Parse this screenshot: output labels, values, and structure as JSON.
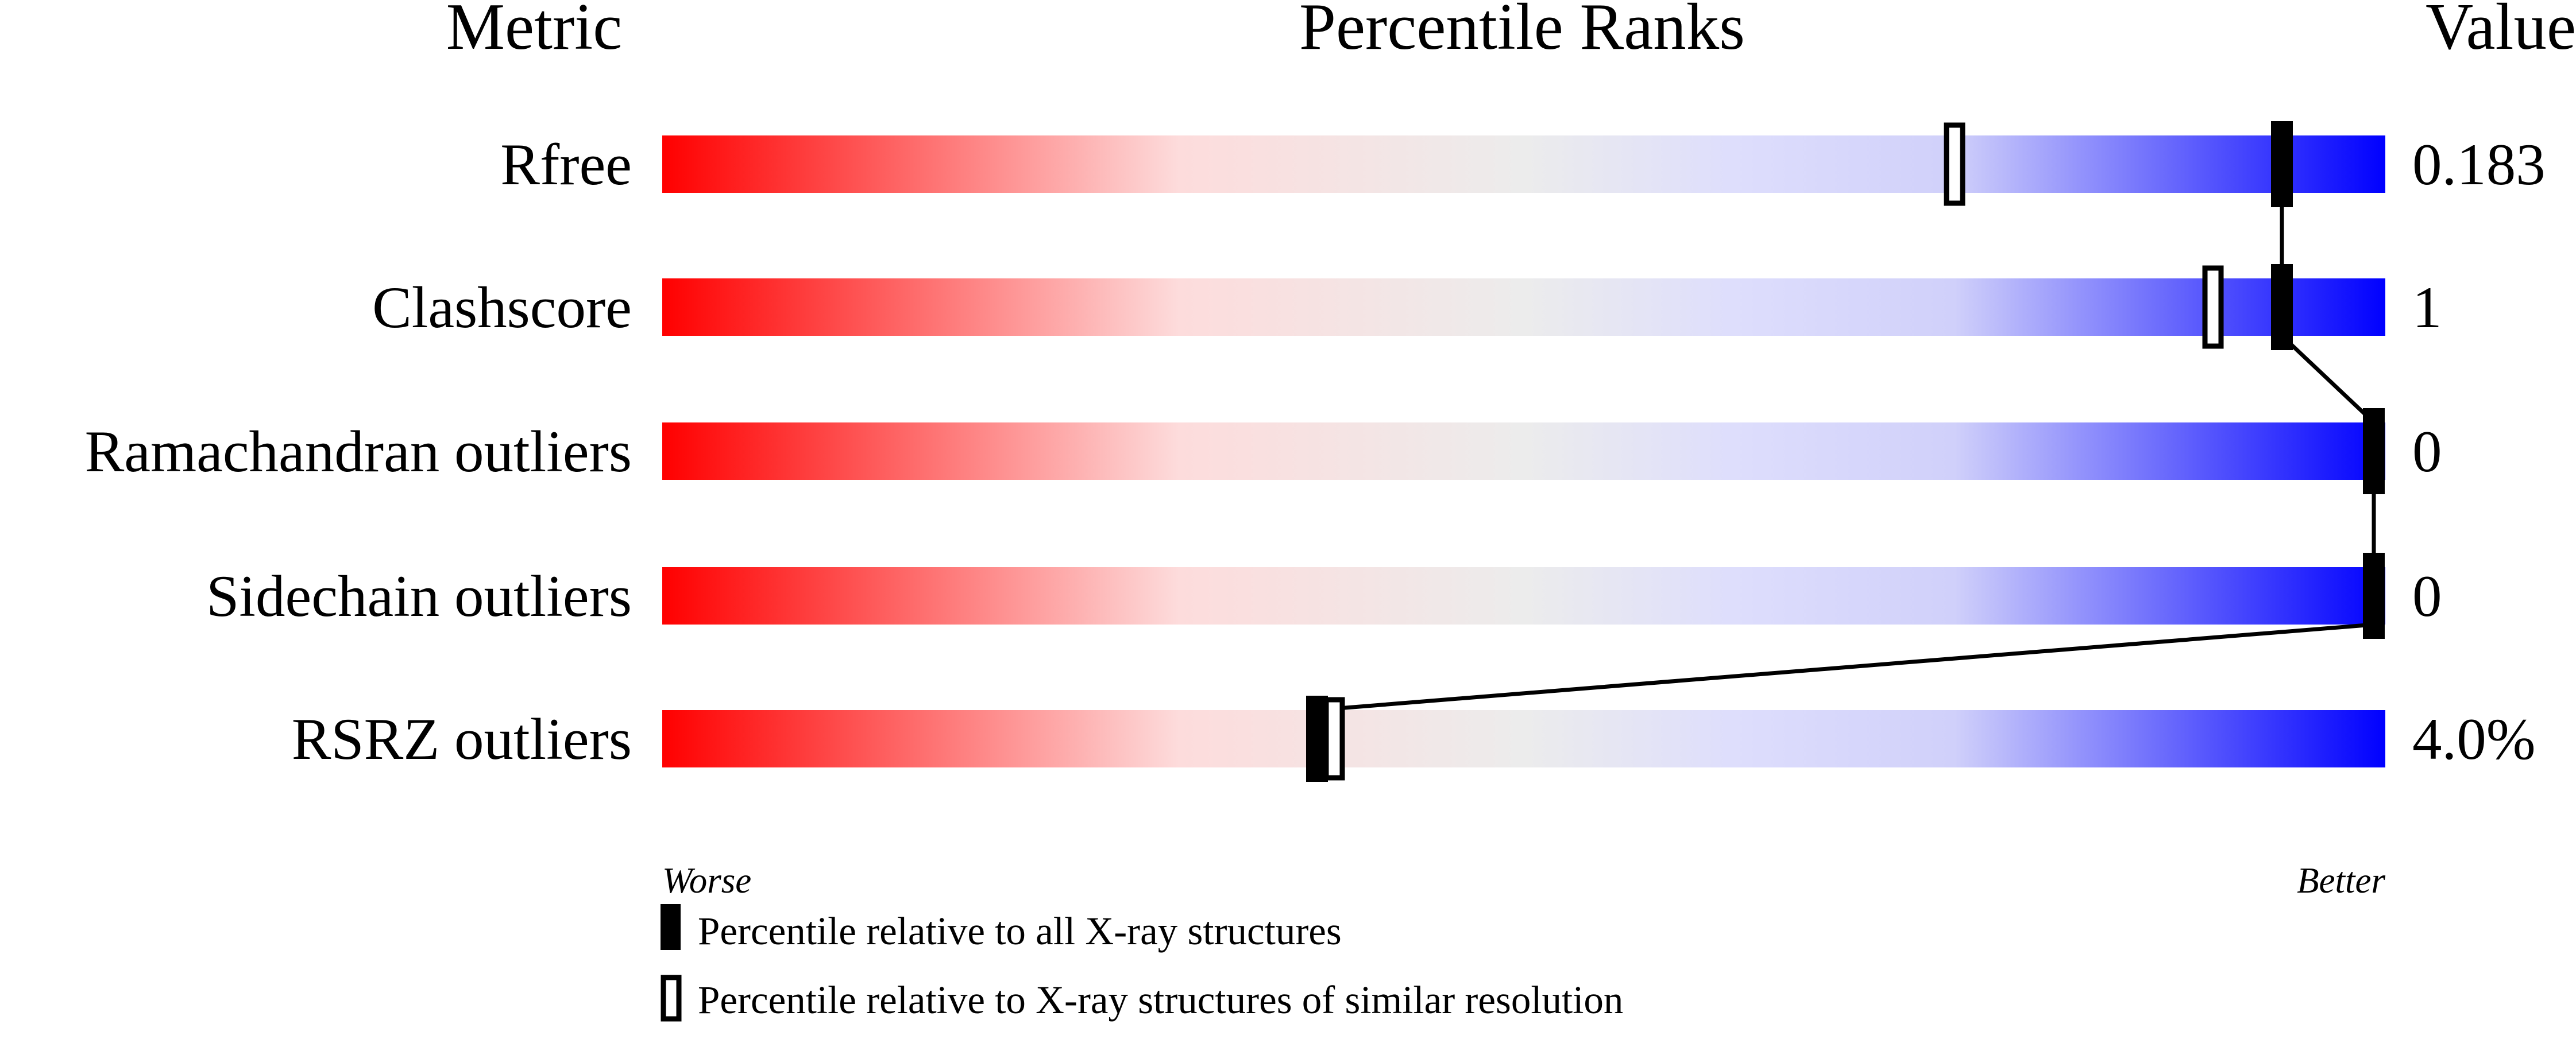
{
  "chart_data": {
    "type": "percentile-slider",
    "headers": {
      "metric": "Metric",
      "ranks": "Percentile Ranks",
      "value": "Value"
    },
    "axis": {
      "left": "Worse",
      "right": "Better",
      "range": [
        0,
        100
      ]
    },
    "gradient_colors": [
      "#ff0000",
      "#fddcdc",
      "#ececec",
      "#dedefc",
      "#0000ff"
    ],
    "metrics": [
      {
        "name": "Rfree",
        "value": "0.183",
        "percentile_all": 94,
        "percentile_similar": 75
      },
      {
        "name": "Clashscore",
        "value": "1",
        "percentile_all": 94,
        "percentile_similar": 90
      },
      {
        "name": "Ramachandran outliers",
        "value": "0",
        "percentile_all": 100,
        "percentile_similar": 100
      },
      {
        "name": "Sidechain outliers",
        "value": "0",
        "percentile_all": 100,
        "percentile_similar": 100
      },
      {
        "name": "RSRZ outliers",
        "value": "4.0%",
        "percentile_all": 38,
        "percentile_similar": 39
      }
    ],
    "legend": {
      "all": "Percentile relative to all X-ray structures",
      "similar": "Percentile relative to X-ray structures of similar resolution"
    }
  }
}
